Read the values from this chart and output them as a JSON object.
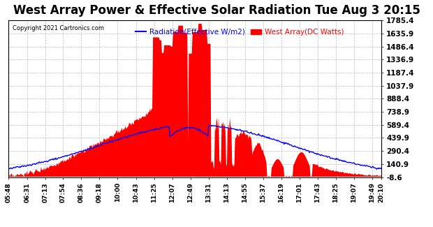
{
  "title": "West Array Power & Effective Solar Radiation Tue Aug 3 20:15",
  "copyright": "Copyright 2021 Cartronics.com",
  "legend_radiation": "Radiation(Effective W/m2)",
  "legend_west": "West Array(DC Watts)",
  "radiation_color": "#0000ff",
  "west_color": "#ff0000",
  "background_color": "#ffffff",
  "plot_bg_color": "#ffffff",
  "yticks": [
    -8.6,
    140.9,
    290.4,
    439.9,
    589.4,
    738.9,
    888.4,
    1037.9,
    1187.4,
    1336.9,
    1486.4,
    1635.9,
    1785.4
  ],
  "ylim": [
    -8.6,
    1785.4
  ],
  "xtick_labels": [
    "05:48",
    "06:31",
    "07:13",
    "07:54",
    "08:36",
    "09:18",
    "10:00",
    "10:43",
    "11:25",
    "12:07",
    "12:49",
    "13:31",
    "14:13",
    "14:55",
    "15:37",
    "16:19",
    "17:01",
    "17:43",
    "18:25",
    "19:07",
    "19:49",
    "20:10"
  ],
  "grid_color": "#aaaaaa",
  "title_fontsize": 12,
  "label_fontsize": 7.5
}
